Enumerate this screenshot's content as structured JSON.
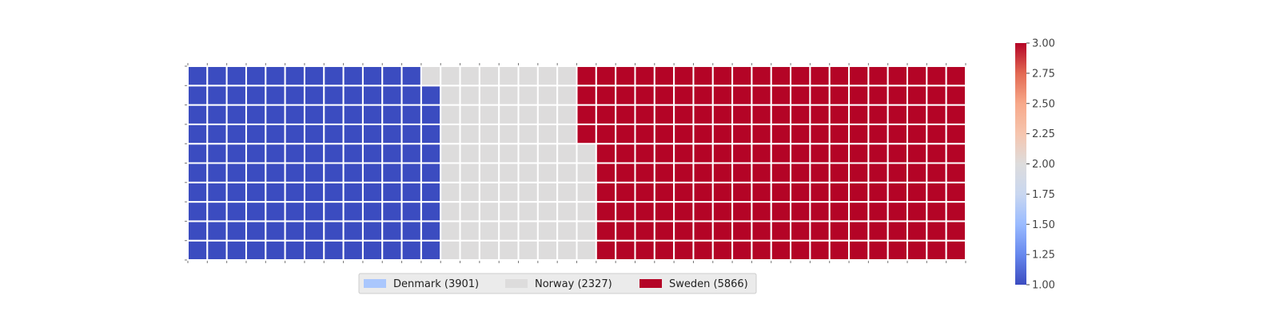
{
  "chart_data": {
    "type": "waffle",
    "rows": 10,
    "columns": 40,
    "fill_order": "column-major, bottom-to-top",
    "categories": [
      {
        "name": "Denmark",
        "value": 3901,
        "cells": 129,
        "legend_label": "Denmark (3901)",
        "cell_color": "#3b4cc0",
        "legend_color": "#aac7fd"
      },
      {
        "name": "Norway",
        "value": 2327,
        "cells": 77,
        "legend_label": "Norway (2327)",
        "cell_color": "#dddcdc",
        "legend_color": "#dddcdc"
      },
      {
        "name": "Sweden",
        "value": 5866,
        "cells": 194,
        "legend_label": "Sweden (5866)",
        "cell_color": "#b40426",
        "legend_color": "#b40426"
      }
    ],
    "colorbar": {
      "min": 1.0,
      "max": 3.0,
      "ticks": [
        "1.00",
        "1.25",
        "1.50",
        "1.75",
        "2.00",
        "2.25",
        "2.50",
        "2.75",
        "3.00"
      ],
      "colormap": [
        "#3b4cc0",
        "#6788ee",
        "#9abbff",
        "#c9d7f0",
        "#dddcdc",
        "#f6c5ae",
        "#f7a889",
        "#e26952",
        "#b40426"
      ]
    },
    "legend_position": "bottom-center"
  }
}
